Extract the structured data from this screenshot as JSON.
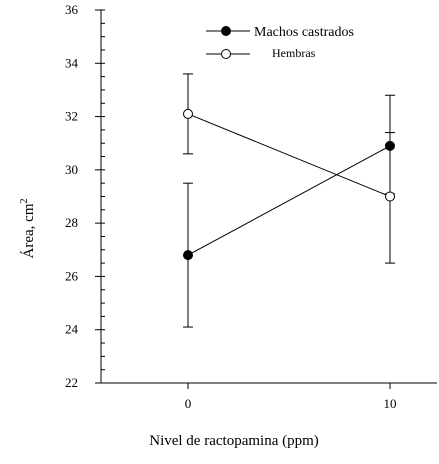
{
  "chart_data": {
    "type": "line",
    "xlabel": "Nivel de ractopamina (ppm)",
    "ylabel": "Área, cm",
    "ylabel_superscript": "2",
    "ylim": [
      22,
      36
    ],
    "yticks": [
      "22",
      "24",
      "26",
      "28",
      "30",
      "32",
      "34",
      "36"
    ],
    "xticks": [
      "0",
      "10"
    ],
    "x": [
      0,
      10
    ],
    "grid": false,
    "legend_position": "top-center",
    "series": [
      {
        "name": "Machos castrados",
        "marker": "filled-circle",
        "color": "#000000",
        "values": [
          26.8,
          30.9
        ],
        "error_upper": [
          29.5,
          32.8
        ],
        "error_lower": [
          24.1,
          29.1
        ]
      },
      {
        "name": "Hembras",
        "marker": "open-circle",
        "color": "#000000",
        "values": [
          32.1,
          29.0
        ],
        "error_upper": [
          33.6,
          31.4
        ],
        "error_lower": [
          30.6,
          26.5
        ]
      }
    ]
  }
}
